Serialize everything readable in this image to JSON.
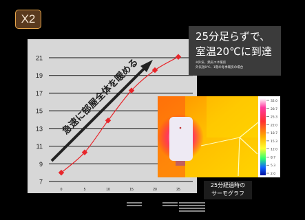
{
  "badge": "X2",
  "caption": {
    "line1": "25分足らずで、",
    "line2": "室温20℃に到達",
    "note1": "※外気、熱気エネ暖房",
    "note2": "外気温0℃、1階の冬季暖房の場合"
  },
  "arrow_label": "急速に部屋全体を暖める",
  "thermo_caption": {
    "line1": "25分経過時の",
    "line2": "サーモグラフ"
  },
  "colorbar_ticks": [
    "32.0",
    "28.7",
    "25.3",
    "22.0",
    "18.7",
    "15.3",
    "12.0",
    "8.7",
    "5.3",
    "2.0"
  ],
  "colors": {
    "series": "#e8262b",
    "arrow": "#222222",
    "plot_bg": "#d7d7d7",
    "badge_border": "#e6a54a"
  },
  "chart_data": {
    "type": "line",
    "title": "",
    "xlabel": "",
    "ylabel": "",
    "x": [
      0,
      5,
      10,
      15,
      20,
      25
    ],
    "x_ticks": [
      0,
      5,
      10,
      15,
      20,
      25
    ],
    "y_ticks": [
      7,
      9,
      11,
      13,
      15,
      17,
      19,
      21
    ],
    "ylim": [
      7,
      22
    ],
    "series": [
      {
        "values": [
          8,
          10.3,
          13.9,
          17.3,
          19.6,
          21.1
        ]
      }
    ],
    "grid": true,
    "legend": "none"
  }
}
